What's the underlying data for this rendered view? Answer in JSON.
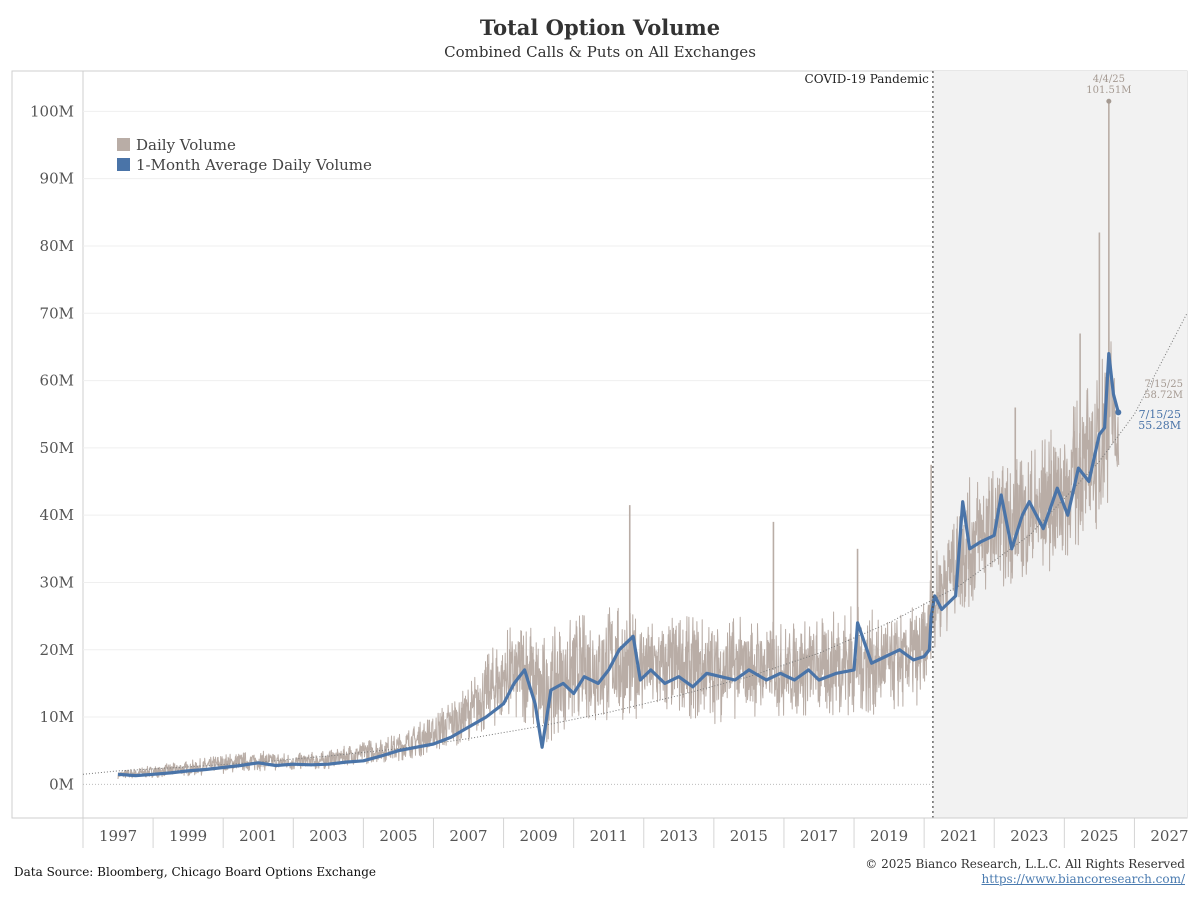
{
  "header": {
    "title": "Total Option Volume",
    "subtitle": "Combined Calls & Puts on All Exchanges"
  },
  "footer": {
    "source": "Data Source: Bloomberg, Chicago Board Options Exchange",
    "copyright": "© 2025 Bianco Research, L.L.C. All Rights Reserved",
    "url": "https://www.biancoresearch.com/"
  },
  "chart_data": {
    "type": "line",
    "title": "Total Option Volume",
    "subtitle": "Combined Calls & Puts on All Exchanges",
    "xlabel": "",
    "ylabel": "",
    "xlim": [
      1996,
      2027.5
    ],
    "ylim": [
      -5,
      106
    ],
    "x_ticks": [
      "1997",
      "1999",
      "2001",
      "2003",
      "2005",
      "2007",
      "2009",
      "2011",
      "2013",
      "2015",
      "2017",
      "2019",
      "2021",
      "2023",
      "2025",
      "2027"
    ],
    "y_ticks": [
      "0M",
      "10M",
      "20M",
      "30M",
      "40M",
      "50M",
      "60M",
      "70M",
      "80M",
      "90M",
      "100M"
    ],
    "y_tick_values": [
      0,
      10,
      20,
      30,
      40,
      50,
      60,
      70,
      80,
      90,
      100
    ],
    "grid": true,
    "legend_position": "top-left",
    "colors": {
      "daily": "#b9ada6",
      "average": "#4a74a8",
      "shade": "#f2f2f2",
      "trend": "#777777",
      "annotation_daily": "#a59a92",
      "annotation_average": "#4a74a8"
    },
    "series": [
      {
        "name": "Daily Volume",
        "kind": "band",
        "x": [
          1997.0,
          1998.0,
          1999.0,
          2000.0,
          2001.0,
          2002.0,
          2003.0,
          2004.0,
          2005.0,
          2006.0,
          2007.0,
          2008.0,
          2008.75,
          2009.0,
          2010.0,
          2011.0,
          2012.0,
          2013.0,
          2014.0,
          2015.0,
          2016.0,
          2017.0,
          2018.0,
          2019.0,
          2020.0,
          2020.25,
          2021.0,
          2022.0,
          2023.0,
          2024.0,
          2025.0,
          2025.25,
          2025.54
        ],
        "low": [
          0.8,
          1.0,
          1.2,
          1.6,
          2.0,
          2.0,
          2.3,
          3.0,
          3.5,
          4.5,
          6.5,
          9.0,
          9.0,
          5.0,
          9.0,
          9.0,
          10.0,
          10.0,
          9.0,
          10.0,
          10.0,
          10.0,
          10.0,
          10.5,
          12.0,
          20.0,
          25.0,
          29.0,
          29.0,
          33.0,
          38.0,
          42.0,
          44.0
        ],
        "high": [
          2.0,
          2.8,
          3.5,
          4.5,
          5.0,
          4.6,
          5.0,
          6.5,
          7.5,
          10.5,
          15.0,
          23.0,
          25.0,
          22.0,
          25.0,
          27.0,
          25.0,
          25.0,
          25.0,
          25.0,
          24.0,
          25.0,
          27.0,
          25.0,
          27.0,
          33.0,
          45.0,
          47.0,
          50.0,
          55.0,
          62.0,
          72.0,
          58.0
        ]
      },
      {
        "name": "1-Month Average Daily Volume",
        "kind": "line",
        "x": [
          1997.0,
          1997.5,
          1998.0,
          1998.5,
          1999.0,
          1999.5,
          2000.0,
          2000.5,
          2001.0,
          2001.5,
          2002.0,
          2002.5,
          2003.0,
          2003.5,
          2004.0,
          2004.5,
          2005.0,
          2005.5,
          2006.0,
          2006.5,
          2007.0,
          2007.5,
          2008.0,
          2008.3,
          2008.6,
          2008.9,
          2009.1,
          2009.35,
          2009.7,
          2010.0,
          2010.3,
          2010.7,
          2011.0,
          2011.3,
          2011.7,
          2011.9,
          2012.2,
          2012.6,
          2013.0,
          2013.4,
          2013.8,
          2014.2,
          2014.6,
          2015.0,
          2015.5,
          2015.9,
          2016.3,
          2016.7,
          2017.0,
          2017.5,
          2018.0,
          2018.1,
          2018.5,
          2018.9,
          2019.3,
          2019.7,
          2020.0,
          2020.15,
          2020.2,
          2020.3,
          2020.5,
          2020.9,
          2021.1,
          2021.3,
          2021.6,
          2022.0,
          2022.2,
          2022.5,
          2022.8,
          2023.0,
          2023.4,
          2023.8,
          2024.1,
          2024.4,
          2024.7,
          2025.0,
          2025.15,
          2025.27,
          2025.4,
          2025.54
        ],
        "y": [
          1.5,
          1.3,
          1.5,
          1.7,
          2.0,
          2.2,
          2.5,
          2.8,
          3.2,
          2.8,
          3.0,
          2.9,
          3.0,
          3.3,
          3.5,
          4.2,
          5.0,
          5.5,
          6.0,
          7.0,
          8.5,
          10.0,
          12.0,
          15.0,
          17.0,
          12.0,
          5.5,
          14.0,
          15.0,
          13.5,
          16.0,
          15.0,
          17.0,
          20.0,
          22.0,
          15.5,
          17.0,
          15.0,
          16.0,
          14.5,
          16.5,
          16.0,
          15.5,
          17.0,
          15.5,
          16.5,
          15.5,
          17.0,
          15.5,
          16.5,
          17.0,
          24.0,
          18.0,
          19.0,
          20.0,
          18.5,
          19.0,
          20.0,
          25.0,
          28.0,
          26.0,
          28.0,
          42.0,
          35.0,
          36.0,
          37.0,
          43.0,
          35.0,
          40.0,
          42.0,
          38.0,
          44.0,
          40.0,
          47.0,
          45.0,
          52.0,
          53.0,
          64.0,
          58.0,
          55.28
        ]
      },
      {
        "name": "",
        "kind": "trend",
        "x": [
          1996.0,
          1997.0,
          1999.0,
          2001.0,
          2003.0,
          2005.0,
          2007.0,
          2009.0,
          2011.0,
          2013.0,
          2015.0,
          2017.0,
          2019.0,
          2021.0,
          2023.0,
          2025.0,
          2026.0,
          2027.5
        ],
        "y": [
          1.5,
          2.0,
          2.6,
          3.3,
          4.2,
          5.3,
          6.8,
          8.6,
          10.7,
          13.2,
          16.0,
          19.5,
          24.0,
          29.5,
          37.0,
          48.0,
          55.0,
          70.0
        ]
      }
    ],
    "spikes": [
      {
        "x": 2011.6,
        "y": 41.5
      },
      {
        "x": 2015.7,
        "y": 39.0
      },
      {
        "x": 2018.1,
        "y": 35.0
      },
      {
        "x": 2020.2,
        "y": 47.5
      },
      {
        "x": 2022.6,
        "y": 56.0
      },
      {
        "x": 2024.45,
        "y": 67.0
      },
      {
        "x": 2025.0,
        "y": 82.0
      },
      {
        "x": 2025.27,
        "y": 101.51
      }
    ],
    "covid": {
      "x": 2020.25,
      "label": "COVID-19 Pandemic"
    },
    "annotations": [
      {
        "x": 2025.27,
        "y": 101.51,
        "date": "4/4/25",
        "value": "101.51M",
        "series": "Daily Volume"
      },
      {
        "x": 2025.54,
        "y": 58.72,
        "date": "7/15/25",
        "value": "58.72M",
        "series": "Daily Volume"
      },
      {
        "x": 2025.54,
        "y": 55.28,
        "date": "7/15/25",
        "value": "55.28M",
        "series": "1-Month Average Daily Volume"
      }
    ]
  }
}
